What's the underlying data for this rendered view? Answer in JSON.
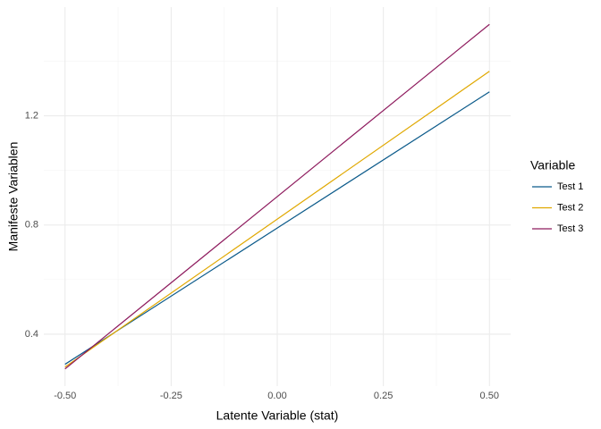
{
  "chart_data": {
    "type": "line",
    "x_label": "Latente Variable (stat)",
    "y_label": "Manifeste Variablen",
    "x": [
      -0.5,
      0.5
    ],
    "series": [
      {
        "name": "Test 1",
        "color": "#0b5a8a",
        "values": [
          0.29,
          1.288
        ]
      },
      {
        "name": "Test 2",
        "color": "#e0a800",
        "values": [
          0.28,
          1.363
        ]
      },
      {
        "name": "Test 3",
        "color": "#8e1b5e",
        "values": [
          0.273,
          1.535
        ]
      }
    ],
    "xlim": [
      -0.55,
      0.55
    ],
    "ylim": [
      0.21,
      1.598
    ],
    "xticks": [
      {
        "value": -0.5,
        "label": "-0.50"
      },
      {
        "value": -0.25,
        "label": "-0.25"
      },
      {
        "value": 0,
        "label": "0.00"
      },
      {
        "value": 0.25,
        "label": "0.25"
      },
      {
        "value": 0.5,
        "label": "0.50"
      }
    ],
    "yticks": [
      0.4,
      0.8,
      1.2
    ],
    "legend_title": "Variable",
    "legend_position": "right",
    "grid": true
  }
}
